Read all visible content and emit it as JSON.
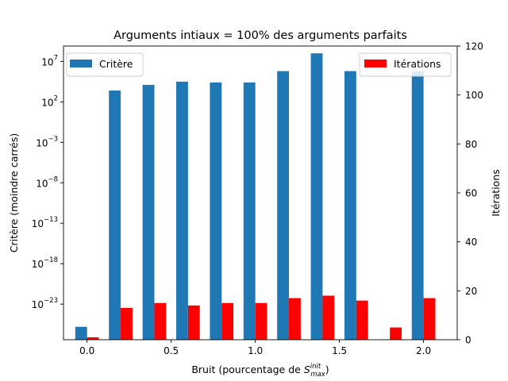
{
  "chart_data": {
    "type": "bar",
    "title": "Arguments intiaux = 100% des arguments parfaits",
    "xlabel_main": "Bruit (pourcentage de ",
    "xlabel_math": "S",
    "xlabel_sup": "init",
    "xlabel_sub": "max",
    "xlabel_end": ")",
    "ylabel_left": "Critère (moindre carrés)",
    "ylabel_right": "Itérations",
    "x": [
      0.0,
      0.2,
      0.4,
      0.6,
      0.8,
      1.0,
      1.2,
      1.4,
      1.6,
      1.8,
      2.0
    ],
    "xlim": [
      -0.14,
      2.2
    ],
    "xticks": [
      "0.0",
      "0.5",
      "1.0",
      "1.5",
      "2.0"
    ],
    "xtick_values": [
      0.0,
      0.5,
      1.0,
      1.5,
      2.0
    ],
    "left_axis": {
      "scale": "log",
      "ylim_exp": [
        -27.4,
        8.9
      ],
      "ticks": [
        {
          "base": "10",
          "exp": "7",
          "value_exp": 7
        },
        {
          "base": "10",
          "exp": "2",
          "value_exp": 2
        },
        {
          "base": "10",
          "exp": "−3",
          "value_exp": -3
        },
        {
          "base": "10",
          "exp": "−8",
          "value_exp": -8
        },
        {
          "base": "10",
          "exp": "−13",
          "value_exp": -13
        },
        {
          "base": "10",
          "exp": "−18",
          "value_exp": -18
        },
        {
          "base": "10",
          "exp": "−23",
          "value_exp": -23
        }
      ]
    },
    "right_axis": {
      "scale": "linear",
      "ylim": [
        0,
        120
      ],
      "ticks": [
        "0",
        "20",
        "40",
        "60",
        "80",
        "100",
        "120"
      ],
      "tick_values": [
        0,
        20,
        40,
        60,
        80,
        100,
        120
      ]
    },
    "series": [
      {
        "name": "Critère",
        "axis": "left",
        "color": "#1f77b4",
        "log10_values": [
          -25.8,
          3.4,
          4.1,
          4.5,
          4.4,
          4.4,
          5.8,
          8.0,
          5.8,
          null,
          5.8
        ]
      },
      {
        "name": "Itérations",
        "axis": "right",
        "color": "#ff0000",
        "values": [
          1,
          13,
          15,
          14,
          15,
          15,
          17,
          18,
          16,
          5,
          17
        ]
      }
    ],
    "legend_left_placement": "top-left",
    "legend_right_placement": "top-right"
  }
}
